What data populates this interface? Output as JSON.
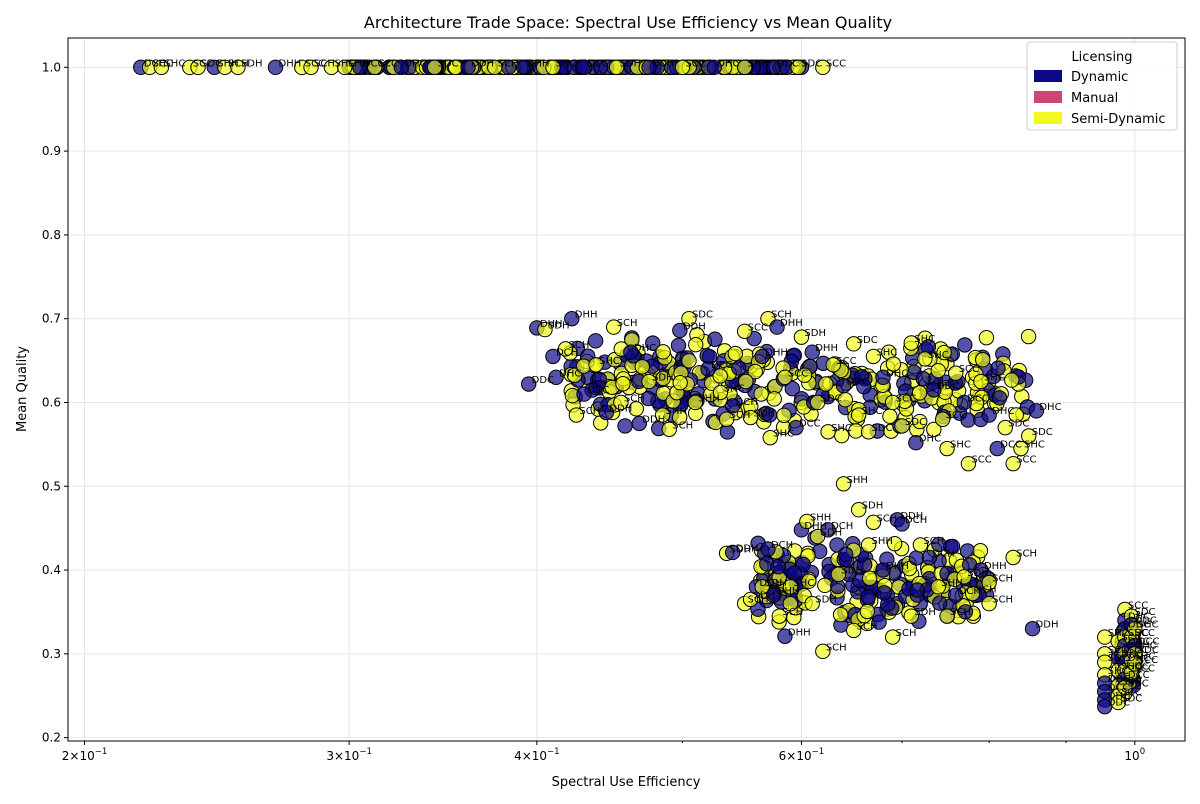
{
  "chart_data": {
    "type": "scatter",
    "title": "Architecture Trade Space: Spectral Use Efficiency vs Mean Quality",
    "xlabel": "Spectral Use Efficiency",
    "ylabel": "Mean Quality",
    "xscale": "log",
    "xlim": [
      0.195,
      1.08
    ],
    "ylim": [
      0.196,
      1.035
    ],
    "xticks": [
      {
        "value": 0.2,
        "base": "2×10",
        "exp": "−1"
      },
      {
        "value": 0.3,
        "base": "3×10",
        "exp": "−1"
      },
      {
        "value": 0.4,
        "base": "4×10",
        "exp": "−1"
      },
      {
        "value": 0.6,
        "base": "6×10",
        "exp": "−1"
      },
      {
        "value": 1.0,
        "base": "10",
        "exp": "0"
      }
    ],
    "xminor": [
      0.5,
      0.7,
      0.8,
      0.9
    ],
    "yticks": [
      0.2,
      0.3,
      0.4,
      0.5,
      0.6,
      0.7,
      0.8,
      0.9,
      1.0
    ],
    "ytick_labels": [
      "0.2",
      "0.3",
      "0.4",
      "0.5",
      "0.6",
      "0.7",
      "0.8",
      "0.9",
      "1.0"
    ],
    "grid": true,
    "legend": {
      "title": "Licensing",
      "position": "top-right",
      "entries": [
        {
          "name": "Dynamic",
          "color": "#0d0887"
        },
        {
          "name": "Manual",
          "color": "#cc4778"
        },
        {
          "name": "Semi-Dynamic",
          "color": "#f0f921"
        }
      ]
    },
    "series_colors": {
      "Dynamic": "#0d0887",
      "Semi-Dynamic": "#f0f921"
    },
    "points": [
      {
        "x": 0.218,
        "y": 1.0,
        "s": "Dynamic",
        "label": "DCH"
      },
      {
        "x": 0.221,
        "y": 1.0,
        "s": "Semi-Dynamic",
        "label": "SCC"
      },
      {
        "x": 0.225,
        "y": 1.0,
        "s": "Semi-Dynamic",
        "label": "SHC"
      },
      {
        "x": 0.235,
        "y": 1.0,
        "s": "Semi-Dynamic",
        "label": "SCC"
      },
      {
        "x": 0.238,
        "y": 1.0,
        "s": "Semi-Dynamic",
        "label": "SDC"
      },
      {
        "x": 0.244,
        "y": 1.0,
        "s": "Dynamic",
        "label": "SHH"
      },
      {
        "x": 0.248,
        "y": 1.0,
        "s": "Semi-Dynamic",
        "label": "SCH"
      },
      {
        "x": 0.253,
        "y": 1.0,
        "s": "Semi-Dynamic",
        "label": "SDH"
      },
      {
        "x": 0.268,
        "y": 1.0,
        "s": "Dynamic",
        "label": "DHH"
      },
      {
        "x": 0.279,
        "y": 1.0,
        "s": "Semi-Dynamic",
        "label": "SCC"
      },
      {
        "x": 0.283,
        "y": 1.0,
        "s": "Semi-Dynamic",
        "label": "SCH"
      },
      {
        "x": 0.292,
        "y": 1.0,
        "s": "Semi-Dynamic",
        "label": "SHC"
      },
      {
        "x": 0.298,
        "y": 1.0,
        "s": "Semi-Dynamic",
        "label": "SHH"
      },
      {
        "x": 0.305,
        "y": 1.0,
        "s": "Dynamic",
        "label": "DCC"
      },
      {
        "x": 0.312,
        "y": 1.0,
        "s": "Semi-Dynamic",
        "label": "SCC"
      },
      {
        "x": 0.325,
        "y": 1.0,
        "s": "Dynamic",
        "label": "DHC"
      },
      {
        "x": 0.342,
        "y": 1.0,
        "s": "Semi-Dynamic",
        "label": "SDC"
      },
      {
        "x": 0.36,
        "y": 1.0,
        "s": "Dynamic",
        "label": "DDH"
      },
      {
        "x": 0.375,
        "y": 1.0,
        "s": "Semi-Dynamic",
        "label": "SCH"
      },
      {
        "x": 0.392,
        "y": 1.0,
        "s": "Dynamic",
        "label": "DHH"
      },
      {
        "x": 0.41,
        "y": 1.0,
        "s": "Semi-Dynamic",
        "label": "SHC"
      },
      {
        "x": 0.43,
        "y": 1.0,
        "s": "Dynamic",
        "label": "DCC"
      },
      {
        "x": 0.452,
        "y": 1.0,
        "s": "Semi-Dynamic",
        "label": "SDH"
      },
      {
        "x": 0.475,
        "y": 1.0,
        "s": "Dynamic",
        "label": "DCH"
      },
      {
        "x": 0.5,
        "y": 1.0,
        "s": "Semi-Dynamic",
        "label": "SCC"
      },
      {
        "x": 0.525,
        "y": 1.0,
        "s": "Dynamic",
        "label": "DHC"
      },
      {
        "x": 0.55,
        "y": 1.0,
        "s": "Semi-Dynamic",
        "label": "SHH"
      },
      {
        "x": 0.575,
        "y": 1.0,
        "s": "Dynamic",
        "label": "DDC"
      },
      {
        "x": 0.597,
        "y": 1.0,
        "s": "Semi-Dynamic",
        "label": "SDC"
      },
      {
        "x": 0.62,
        "y": 1.0,
        "s": "Semi-Dynamic",
        "label": "SCC"
      },
      {
        "x": 0.395,
        "y": 0.622,
        "s": "Dynamic",
        "label": "DDC"
      },
      {
        "x": 0.4,
        "y": 0.689,
        "s": "Dynamic",
        "label": "DHH"
      },
      {
        "x": 0.405,
        "y": 0.687,
        "s": "Semi-Dynamic",
        "label": "SDH"
      },
      {
        "x": 0.41,
        "y": 0.655,
        "s": "Dynamic",
        "label": "DCH"
      },
      {
        "x": 0.412,
        "y": 0.63,
        "s": "Dynamic",
        "label": "DHC"
      },
      {
        "x": 0.418,
        "y": 0.664,
        "s": "Semi-Dynamic",
        "label": "SCH"
      },
      {
        "x": 0.422,
        "y": 0.7,
        "s": "Dynamic",
        "label": "DHH"
      },
      {
        "x": 0.425,
        "y": 0.585,
        "s": "Semi-Dynamic",
        "label": "SCH"
      },
      {
        "x": 0.43,
        "y": 0.61,
        "s": "Dynamic",
        "label": "DDC"
      },
      {
        "x": 0.438,
        "y": 0.645,
        "s": "Semi-Dynamic",
        "label": "SHC"
      },
      {
        "x": 0.445,
        "y": 0.588,
        "s": "Dynamic",
        "label": "DDH"
      },
      {
        "x": 0.45,
        "y": 0.69,
        "s": "Semi-Dynamic",
        "label": "SCH"
      },
      {
        "x": 0.455,
        "y": 0.6,
        "s": "Semi-Dynamic",
        "label": "SCH"
      },
      {
        "x": 0.462,
        "y": 0.66,
        "s": "Dynamic",
        "label": "DHC"
      },
      {
        "x": 0.468,
        "y": 0.575,
        "s": "Dynamic",
        "label": "DDH"
      },
      {
        "x": 0.475,
        "y": 0.625,
        "s": "Semi-Dynamic",
        "label": "SDH"
      },
      {
        "x": 0.485,
        "y": 0.585,
        "s": "Semi-Dynamic",
        "label": "SHH"
      },
      {
        "x": 0.49,
        "y": 0.568,
        "s": "Semi-Dynamic",
        "label": "SCH"
      },
      {
        "x": 0.498,
        "y": 0.686,
        "s": "Dynamic",
        "label": "DDH"
      },
      {
        "x": 0.505,
        "y": 0.7,
        "s": "Semi-Dynamic",
        "label": "SDC"
      },
      {
        "x": 0.51,
        "y": 0.6,
        "s": "Semi-Dynamic",
        "label": "SHH"
      },
      {
        "x": 0.52,
        "y": 0.64,
        "s": "Dynamic",
        "label": "DCC"
      },
      {
        "x": 0.53,
        "y": 0.612,
        "s": "Semi-Dynamic",
        "label": "SHC"
      },
      {
        "x": 0.535,
        "y": 0.58,
        "s": "Semi-Dynamic",
        "label": "SCH"
      },
      {
        "x": 0.54,
        "y": 0.596,
        "s": "Dynamic",
        "label": "DCH"
      },
      {
        "x": 0.55,
        "y": 0.685,
        "s": "Semi-Dynamic",
        "label": "SCC"
      },
      {
        "x": 0.555,
        "y": 0.582,
        "s": "Semi-Dynamic",
        "label": "SDH"
      },
      {
        "x": 0.565,
        "y": 0.655,
        "s": "Dynamic",
        "label": "DHH"
      },
      {
        "x": 0.57,
        "y": 0.7,
        "s": "Semi-Dynamic",
        "label": "SCH"
      },
      {
        "x": 0.572,
        "y": 0.558,
        "s": "Semi-Dynamic",
        "label": "SHC"
      },
      {
        "x": 0.578,
        "y": 0.69,
        "s": "Dynamic",
        "label": "DHH"
      },
      {
        "x": 0.585,
        "y": 0.63,
        "s": "Semi-Dynamic",
        "label": "SCC"
      },
      {
        "x": 0.595,
        "y": 0.57,
        "s": "Dynamic",
        "label": "DCC"
      },
      {
        "x": 0.6,
        "y": 0.678,
        "s": "Semi-Dynamic",
        "label": "SDH"
      },
      {
        "x": 0.61,
        "y": 0.66,
        "s": "Dynamic",
        "label": "DHH"
      },
      {
        "x": 0.615,
        "y": 0.6,
        "s": "Semi-Dynamic",
        "label": "SDC"
      },
      {
        "x": 0.625,
        "y": 0.565,
        "s": "Semi-Dynamic",
        "label": "SHC"
      },
      {
        "x": 0.63,
        "y": 0.645,
        "s": "Semi-Dynamic",
        "label": "SCC"
      },
      {
        "x": 0.64,
        "y": 0.62,
        "s": "Dynamic",
        "label": "DDC"
      },
      {
        "x": 0.65,
        "y": 0.67,
        "s": "Semi-Dynamic",
        "label": "SDC"
      },
      {
        "x": 0.655,
        "y": 0.585,
        "s": "Semi-Dynamic",
        "label": "SHC"
      },
      {
        "x": 0.665,
        "y": 0.565,
        "s": "Semi-Dynamic",
        "label": "SDC"
      },
      {
        "x": 0.67,
        "y": 0.655,
        "s": "Semi-Dynamic",
        "label": "SHC"
      },
      {
        "x": 0.68,
        "y": 0.63,
        "s": "Dynamic",
        "label": "DHC"
      },
      {
        "x": 0.69,
        "y": 0.6,
        "s": "Semi-Dynamic",
        "label": "SCC"
      },
      {
        "x": 0.7,
        "y": 0.572,
        "s": "Semi-Dynamic",
        "label": "SDC"
      },
      {
        "x": 0.71,
        "y": 0.671,
        "s": "Semi-Dynamic",
        "label": "SHC"
      },
      {
        "x": 0.715,
        "y": 0.552,
        "s": "Dynamic",
        "label": "DHC"
      },
      {
        "x": 0.725,
        "y": 0.652,
        "s": "Semi-Dynamic",
        "label": "SHC"
      },
      {
        "x": 0.735,
        "y": 0.615,
        "s": "Dynamic",
        "label": "DDC"
      },
      {
        "x": 0.745,
        "y": 0.58,
        "s": "Semi-Dynamic",
        "label": "SCC"
      },
      {
        "x": 0.75,
        "y": 0.545,
        "s": "Semi-Dynamic",
        "label": "SHC"
      },
      {
        "x": 0.76,
        "y": 0.635,
        "s": "Semi-Dynamic",
        "label": "SCC"
      },
      {
        "x": 0.77,
        "y": 0.6,
        "s": "Dynamic",
        "label": "DCC"
      },
      {
        "x": 0.775,
        "y": 0.527,
        "s": "Semi-Dynamic",
        "label": "SCC"
      },
      {
        "x": 0.79,
        "y": 0.625,
        "s": "Semi-Dynamic",
        "label": "SHC"
      },
      {
        "x": 0.8,
        "y": 0.585,
        "s": "Dynamic",
        "label": "DHC"
      },
      {
        "x": 0.81,
        "y": 0.545,
        "s": "Dynamic",
        "label": "DCC"
      },
      {
        "x": 0.82,
        "y": 0.57,
        "s": "Semi-Dynamic",
        "label": "SDC"
      },
      {
        "x": 0.83,
        "y": 0.527,
        "s": "Semi-Dynamic",
        "label": "SCC"
      },
      {
        "x": 0.84,
        "y": 0.545,
        "s": "Semi-Dynamic",
        "label": "SHC"
      },
      {
        "x": 0.85,
        "y": 0.56,
        "s": "Semi-Dynamic",
        "label": "SDC"
      },
      {
        "x": 0.86,
        "y": 0.59,
        "s": "Dynamic",
        "label": "DHC"
      },
      {
        "x": 0.535,
        "y": 0.42,
        "s": "Semi-Dynamic",
        "label": "SDH"
      },
      {
        "x": 0.54,
        "y": 0.421,
        "s": "Dynamic",
        "label": "DDH"
      },
      {
        "x": 0.55,
        "y": 0.36,
        "s": "Semi-Dynamic",
        "label": "SCH"
      },
      {
        "x": 0.555,
        "y": 0.365,
        "s": "Semi-Dynamic",
        "label": "SDH"
      },
      {
        "x": 0.56,
        "y": 0.38,
        "s": "Dynamic",
        "label": "DDH"
      },
      {
        "x": 0.565,
        "y": 0.38,
        "s": "Semi-Dynamic",
        "label": "SDH"
      },
      {
        "x": 0.57,
        "y": 0.425,
        "s": "Dynamic",
        "label": "DCH"
      },
      {
        "x": 0.575,
        "y": 0.37,
        "s": "Dynamic",
        "label": "DHH"
      },
      {
        "x": 0.58,
        "y": 0.345,
        "s": "Semi-Dynamic",
        "label": "SCH"
      },
      {
        "x": 0.585,
        "y": 0.321,
        "s": "Dynamic",
        "label": "DHH"
      },
      {
        "x": 0.59,
        "y": 0.38,
        "s": "Semi-Dynamic",
        "label": "SHC"
      },
      {
        "x": 0.6,
        "y": 0.448,
        "s": "Dynamic",
        "label": "DHH"
      },
      {
        "x": 0.605,
        "y": 0.458,
        "s": "Semi-Dynamic",
        "label": "SHH"
      },
      {
        "x": 0.61,
        "y": 0.36,
        "s": "Semi-Dynamic",
        "label": "SDH"
      },
      {
        "x": 0.615,
        "y": 0.44,
        "s": "Semi-Dynamic",
        "label": "SDH"
      },
      {
        "x": 0.62,
        "y": 0.303,
        "s": "Semi-Dynamic",
        "label": "SCH"
      },
      {
        "x": 0.625,
        "y": 0.448,
        "s": "Dynamic",
        "label": "DCH"
      },
      {
        "x": 0.635,
        "y": 0.395,
        "s": "Semi-Dynamic",
        "label": "SDH"
      },
      {
        "x": 0.64,
        "y": 0.503,
        "s": "Semi-Dynamic",
        "label": "SHH"
      },
      {
        "x": 0.65,
        "y": 0.328,
        "s": "Semi-Dynamic",
        "label": "SCH"
      },
      {
        "x": 0.655,
        "y": 0.472,
        "s": "Semi-Dynamic",
        "label": "SDH"
      },
      {
        "x": 0.665,
        "y": 0.43,
        "s": "Semi-Dynamic",
        "label": "SHH"
      },
      {
        "x": 0.67,
        "y": 0.457,
        "s": "Semi-Dynamic",
        "label": "SCH"
      },
      {
        "x": 0.68,
        "y": 0.4,
        "s": "Dynamic",
        "label": "DHH"
      },
      {
        "x": 0.69,
        "y": 0.32,
        "s": "Semi-Dynamic",
        "label": "SCH"
      },
      {
        "x": 0.695,
        "y": 0.46,
        "s": "Dynamic",
        "label": "DDH"
      },
      {
        "x": 0.7,
        "y": 0.455,
        "s": "Dynamic",
        "label": "DCH"
      },
      {
        "x": 0.71,
        "y": 0.345,
        "s": "Semi-Dynamic",
        "label": "SDH"
      },
      {
        "x": 0.72,
        "y": 0.43,
        "s": "Semi-Dynamic",
        "label": "SCH"
      },
      {
        "x": 0.73,
        "y": 0.415,
        "s": "Dynamic",
        "label": "DCH"
      },
      {
        "x": 0.74,
        "y": 0.38,
        "s": "Semi-Dynamic",
        "label": "SHH"
      },
      {
        "x": 0.75,
        "y": 0.345,
        "s": "Semi-Dynamic",
        "label": "SCH"
      },
      {
        "x": 0.76,
        "y": 0.37,
        "s": "Dynamic",
        "label": "DCH"
      },
      {
        "x": 0.77,
        "y": 0.392,
        "s": "Semi-Dynamic",
        "label": "SDH"
      },
      {
        "x": 0.78,
        "y": 0.372,
        "s": "Semi-Dynamic",
        "label": "SCH"
      },
      {
        "x": 0.79,
        "y": 0.4,
        "s": "Dynamic",
        "label": "DHH"
      },
      {
        "x": 0.8,
        "y": 0.385,
        "s": "Semi-Dynamic",
        "label": "SCH"
      },
      {
        "x": 0.8,
        "y": 0.36,
        "s": "Semi-Dynamic",
        "label": "SCH"
      },
      {
        "x": 0.83,
        "y": 0.415,
        "s": "Semi-Dynamic",
        "label": "SCH"
      },
      {
        "x": 0.855,
        "y": 0.33,
        "s": "Dynamic",
        "label": "DDH"
      },
      {
        "x": 0.955,
        "y": 0.32,
        "s": "Semi-Dynamic",
        "label": "SHC"
      },
      {
        "x": 0.955,
        "y": 0.3,
        "s": "Semi-Dynamic",
        "label": "SCC"
      },
      {
        "x": 0.955,
        "y": 0.29,
        "s": "Semi-Dynamic",
        "label": "SDC"
      },
      {
        "x": 0.955,
        "y": 0.275,
        "s": "Semi-Dynamic",
        "label": "SHC"
      },
      {
        "x": 0.955,
        "y": 0.265,
        "s": "Dynamic",
        "label": "DHC"
      },
      {
        "x": 0.955,
        "y": 0.255,
        "s": "Dynamic",
        "label": "DCC"
      },
      {
        "x": 0.955,
        "y": 0.245,
        "s": "Dynamic",
        "label": "DHC"
      },
      {
        "x": 0.955,
        "y": 0.237,
        "s": "Dynamic",
        "label": "DDC"
      },
      {
        "x": 0.975,
        "y": 0.315,
        "s": "Semi-Dynamic",
        "label": "SCC"
      },
      {
        "x": 0.975,
        "y": 0.295,
        "s": "Dynamic",
        "label": "DHC"
      },
      {
        "x": 0.975,
        "y": 0.28,
        "s": "Semi-Dynamic",
        "label": "SHC"
      },
      {
        "x": 0.975,
        "y": 0.262,
        "s": "Semi-Dynamic",
        "label": "SDC"
      },
      {
        "x": 0.975,
        "y": 0.25,
        "s": "Semi-Dynamic",
        "label": "SCC"
      },
      {
        "x": 0.975,
        "y": 0.242,
        "s": "Semi-Dynamic",
        "label": "SDC"
      },
      {
        "x": 0.985,
        "y": 0.353,
        "s": "Semi-Dynamic",
        "label": "SCC"
      },
      {
        "x": 0.985,
        "y": 0.34,
        "s": "Dynamic",
        "label": "DHC"
      },
      {
        "x": 0.985,
        "y": 0.33,
        "s": "Dynamic",
        "label": "DDC"
      },
      {
        "x": 0.985,
        "y": 0.32,
        "s": "Semi-Dynamic",
        "label": "SHC"
      },
      {
        "x": 0.985,
        "y": 0.31,
        "s": "Dynamic",
        "label": "DCC"
      },
      {
        "x": 0.985,
        "y": 0.3,
        "s": "Semi-Dynamic",
        "label": "SCC"
      },
      {
        "x": 0.985,
        "y": 0.29,
        "s": "Dynamic",
        "label": "DHC"
      },
      {
        "x": 0.985,
        "y": 0.28,
        "s": "Semi-Dynamic",
        "label": "SDC"
      },
      {
        "x": 0.985,
        "y": 0.27,
        "s": "Dynamic",
        "label": "DCC"
      },
      {
        "x": 0.985,
        "y": 0.26,
        "s": "Semi-Dynamic",
        "label": "SHC"
      },
      {
        "x": 0.995,
        "y": 0.345,
        "s": "Semi-Dynamic",
        "label": "SDC"
      },
      {
        "x": 0.995,
        "y": 0.335,
        "s": "Dynamic",
        "label": "DDC"
      },
      {
        "x": 0.995,
        "y": 0.32,
        "s": "Semi-Dynamic",
        "label": "SCC"
      },
      {
        "x": 0.995,
        "y": 0.305,
        "s": "Dynamic",
        "label": "DHC"
      },
      {
        "x": 0.995,
        "y": 0.292,
        "s": "Semi-Dynamic",
        "label": "SHC"
      },
      {
        "x": 0.995,
        "y": 0.278,
        "s": "Semi-Dynamic",
        "label": "SCC"
      },
      {
        "x": 1.0,
        "y": 0.33,
        "s": "Semi-Dynamic",
        "label": "SHC"
      },
      {
        "x": 1.0,
        "y": 0.31,
        "s": "Dynamic",
        "label": "DCC"
      },
      {
        "x": 1.0,
        "y": 0.3,
        "s": "Semi-Dynamic",
        "label": "SDC"
      },
      {
        "x": 1.0,
        "y": 0.288,
        "s": "Semi-Dynamic",
        "label": "SCC"
      }
    ]
  }
}
